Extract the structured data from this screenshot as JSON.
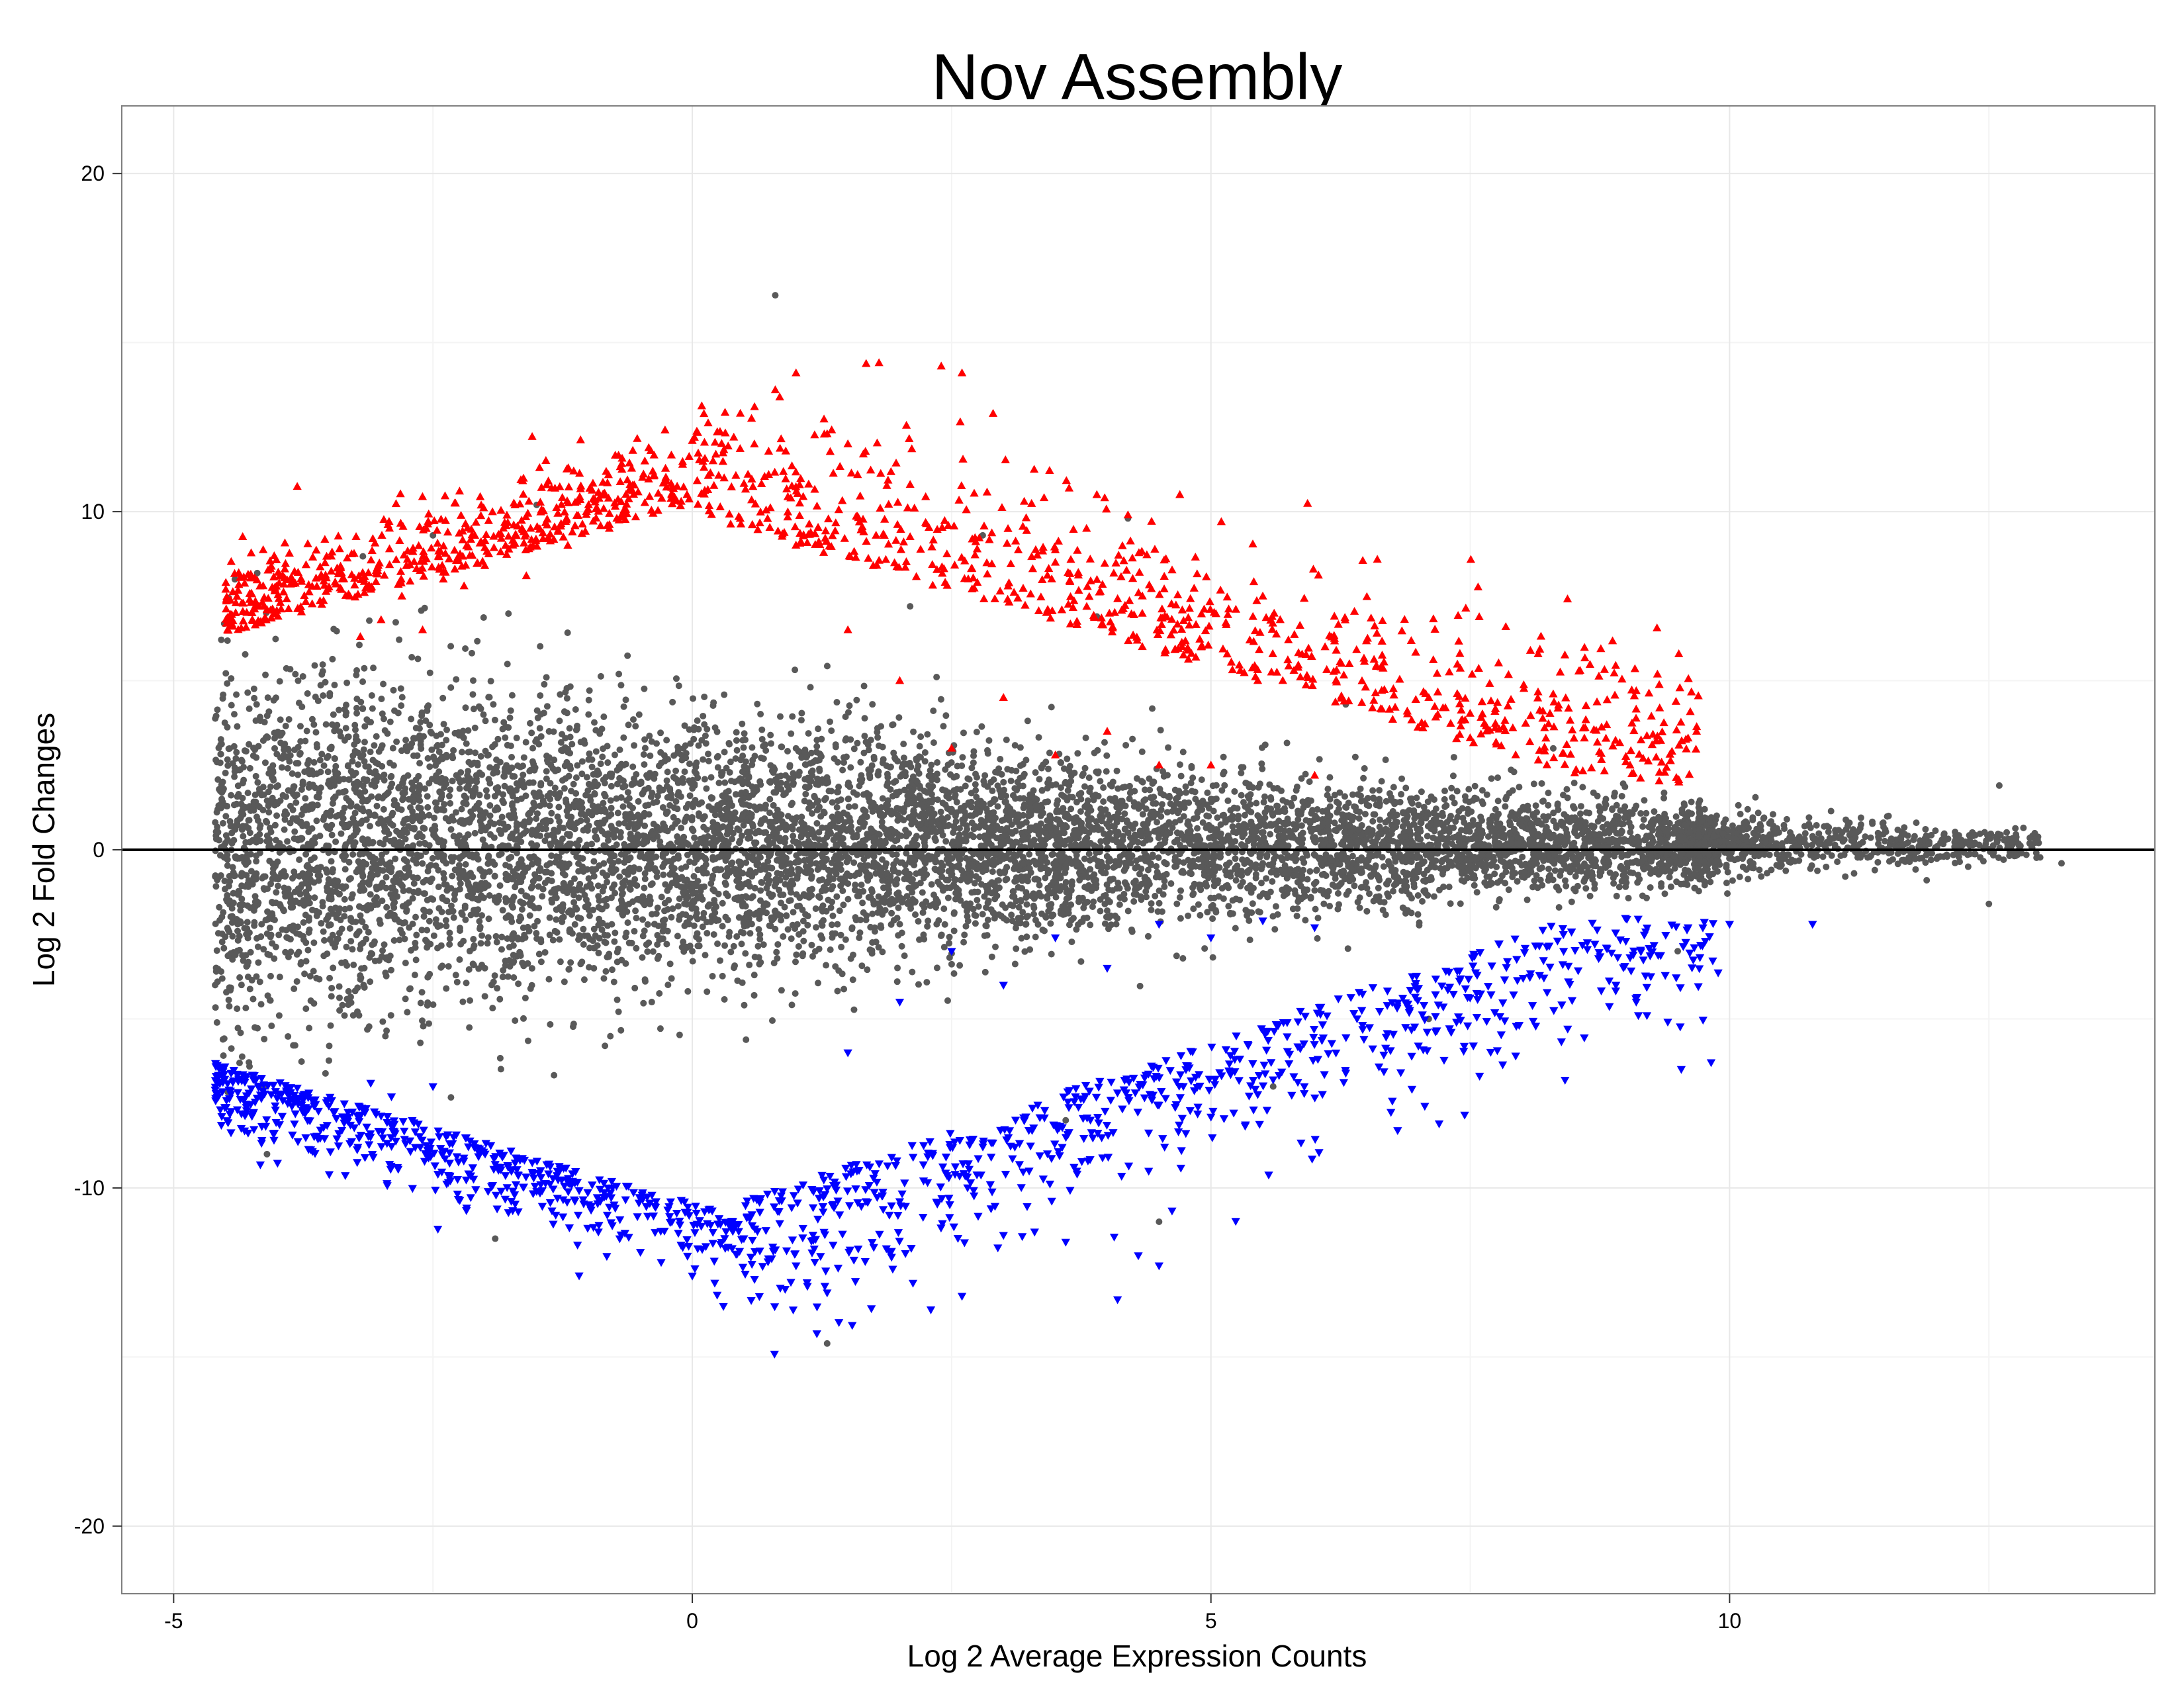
{
  "chart_data": {
    "type": "scatter",
    "title": "Nov Assembly",
    "xlabel": "Log 2 Average Expression Counts",
    "ylabel": "Log 2 Fold Changes",
    "xlim": [
      -5.5,
      14.1
    ],
    "ylim": [
      -22,
      22
    ],
    "x_ticks": [
      -5,
      0,
      5,
      10
    ],
    "y_ticks": [
      -20,
      -10,
      0,
      10,
      20
    ],
    "x_tick_labels": [
      "-5",
      "0",
      "5",
      "10"
    ],
    "y_tick_labels": [
      "-20",
      "-10",
      "0",
      "10",
      "20"
    ],
    "grid": true,
    "reference_line": {
      "y": 0,
      "color": "#000000"
    },
    "series": [
      {
        "role": "not-significant",
        "marker": "circle",
        "color": "#595959",
        "points": [
          [
            0.8,
            16.4
          ],
          [
            1.3,
            -14.6
          ],
          [
            -1.9,
            -11.5
          ],
          [
            -4.1,
            -9.0
          ],
          [
            13.2,
            -0.4
          ],
          [
            12.6,
            1.9
          ],
          [
            12.5,
            -1.6
          ],
          [
            12.3,
            -0.5
          ],
          [
            11.9,
            -0.9
          ],
          [
            11.8,
            0.8
          ],
          [
            11.4,
            -0.6
          ],
          [
            11.5,
            0.6
          ],
          [
            10.8,
            0.4
          ],
          [
            10.6,
            -0.3
          ],
          [
            10.3,
            0.7
          ],
          [
            10.2,
            -0.5
          ],
          [
            -4.5,
            0.2
          ],
          [
            -4.3,
            -2.5
          ],
          [
            -4.4,
            2.7
          ],
          [
            -4.6,
            -4.0
          ],
          [
            -4.2,
            4.3
          ],
          [
            -3.8,
            5.0
          ],
          [
            -3.5,
            -5.8
          ],
          [
            -2.5,
            9.3
          ],
          [
            -1.5,
            10.2
          ],
          [
            2.1,
            7.2
          ],
          [
            2.8,
            9.3
          ],
          [
            3.6,
            -8.0
          ],
          [
            4.2,
            9.8
          ],
          [
            3.9,
            6.9
          ],
          [
            4.5,
            -11.0
          ],
          [
            5.6,
            -7.0
          ],
          [
            6.3,
            4.3
          ],
          [
            7.1,
            -5.0
          ],
          [
            8.3,
            3.0
          ],
          [
            9.5,
            -3.0
          ],
          [
            -1.2,
            1.0
          ],
          [
            -0.5,
            -1.5
          ],
          [
            0.5,
            2.0
          ],
          [
            1.5,
            -1.0
          ],
          [
            2.5,
            1.2
          ],
          [
            3.5,
            -0.8
          ],
          [
            4.5,
            0.6
          ],
          [
            5.5,
            -0.4
          ],
          [
            6.5,
            0.3
          ],
          [
            7.5,
            -0.3
          ],
          [
            8.5,
            0.2
          ],
          [
            9.3,
            -0.2
          ],
          [
            -3.0,
            3.0
          ],
          [
            -2.0,
            -3.5
          ],
          [
            -1.0,
            4.0
          ],
          [
            0.0,
            -3.0
          ],
          [
            1.0,
            3.0
          ],
          [
            2.0,
            -2.2
          ],
          [
            3.0,
            2.0
          ],
          [
            4.0,
            -1.8
          ],
          [
            5.0,
            1.5
          ],
          [
            6.0,
            -1.2
          ],
          [
            7.0,
            1.0
          ],
          [
            8.0,
            -0.8
          ]
        ]
      },
      {
        "role": "up-regulated",
        "marker": "triangle-up",
        "color": "#ff0000",
        "points": [
          [
            -4.4,
            7.3
          ],
          [
            -4.1,
            7.1
          ],
          [
            -3.8,
            8.2
          ],
          [
            -3.4,
            8.9
          ],
          [
            -3.2,
            6.3
          ],
          [
            -3.0,
            6.8
          ],
          [
            -2.8,
            7.5
          ],
          [
            -2.6,
            6.5
          ],
          [
            -2.4,
            8.0
          ],
          [
            -2.2,
            7.8
          ],
          [
            -2.0,
            8.4
          ],
          [
            -1.8,
            9.0
          ],
          [
            -1.6,
            8.1
          ],
          [
            -1.4,
            9.6
          ],
          [
            -1.2,
            9.0
          ],
          [
            -1.0,
            10.2
          ],
          [
            -0.8,
            9.5
          ],
          [
            -0.6,
            10.8
          ],
          [
            -0.4,
            11.8
          ],
          [
            -0.2,
            10.5
          ],
          [
            0.0,
            12.1
          ],
          [
            0.2,
            11.5
          ],
          [
            0.4,
            12.2
          ],
          [
            0.6,
            13.1
          ],
          [
            0.8,
            13.6
          ],
          [
            1.0,
            14.1
          ],
          [
            1.3,
            12.3
          ],
          [
            1.5,
            12.0
          ],
          [
            1.8,
            14.4
          ],
          [
            2.1,
            10.8
          ],
          [
            2.4,
            14.3
          ],
          [
            2.6,
            14.1
          ],
          [
            2.9,
            12.9
          ],
          [
            3.2,
            10.3
          ],
          [
            3.5,
            8.5
          ],
          [
            3.9,
            10.5
          ],
          [
            4.2,
            9.9
          ],
          [
            4.7,
            10.5
          ],
          [
            5.1,
            9.7
          ],
          [
            5.5,
            7.5
          ],
          [
            5.8,
            5.3
          ],
          [
            6.1,
            6.0
          ],
          [
            6.6,
            6.4
          ],
          [
            7.1,
            4.5
          ],
          [
            7.4,
            5.8
          ],
          [
            7.7,
            4.4
          ],
          [
            8.2,
            4.1
          ],
          [
            8.6,
            3.3
          ],
          [
            9.1,
            4.7
          ],
          [
            9.0,
            2.6
          ],
          [
            9.6,
            3.3
          ],
          [
            1.5,
            6.5
          ],
          [
            2.0,
            5.0
          ],
          [
            2.5,
            3.0
          ],
          [
            3.0,
            4.5
          ],
          [
            3.5,
            2.8
          ],
          [
            4.0,
            3.5
          ],
          [
            4.5,
            2.5
          ],
          [
            5.0,
            2.5
          ],
          [
            6.0,
            2.2
          ]
        ]
      },
      {
        "role": "down-regulated",
        "marker": "triangle-down",
        "color": "#0000ff",
        "points": [
          [
            -4.6,
            -7.1
          ],
          [
            -4.3,
            -7.8
          ],
          [
            -3.9,
            -7.5
          ],
          [
            -3.5,
            -9.6
          ],
          [
            -3.1,
            -6.9
          ],
          [
            -2.9,
            -7.3
          ],
          [
            -2.7,
            -8.0
          ],
          [
            -2.5,
            -7.0
          ],
          [
            -2.3,
            -8.5
          ],
          [
            -2.1,
            -8.8
          ],
          [
            -1.9,
            -9.3
          ],
          [
            -1.7,
            -9.9
          ],
          [
            -1.5,
            -10.1
          ],
          [
            -1.3,
            -10.3
          ],
          [
            -1.1,
            -10.8
          ],
          [
            -0.9,
            -11.1
          ],
          [
            -0.7,
            -11.5
          ],
          [
            -0.5,
            -11.9
          ],
          [
            -0.3,
            -12.2
          ],
          [
            0.0,
            -12.6
          ],
          [
            0.3,
            -13.5
          ],
          [
            0.6,
            -12.7
          ],
          [
            1.0,
            -12.3
          ],
          [
            1.3,
            -13.1
          ],
          [
            1.6,
            -11.8
          ],
          [
            1.9,
            -10.8
          ],
          [
            2.3,
            -13.6
          ],
          [
            2.6,
            -13.2
          ],
          [
            3.0,
            -11.4
          ],
          [
            3.3,
            -11.3
          ],
          [
            3.6,
            -11.6
          ],
          [
            4.1,
            -13.3
          ],
          [
            4.3,
            -12.0
          ],
          [
            4.5,
            -12.3
          ],
          [
            4.4,
            -9.5
          ],
          [
            5.0,
            -7.9
          ],
          [
            5.6,
            -6.8
          ],
          [
            5.9,
            -7.0
          ],
          [
            6.3,
            -6.6
          ],
          [
            6.8,
            -8.3
          ],
          [
            7.2,
            -8.1
          ],
          [
            7.0,
            -5.8
          ],
          [
            6.7,
            -4.6
          ],
          [
            8.1,
            -4.6
          ],
          [
            8.4,
            -3.0
          ],
          [
            9.1,
            -4.5
          ],
          [
            9.0,
            -2.7
          ],
          [
            9.6,
            -2.3
          ],
          [
            10.0,
            -2.2
          ],
          [
            10.8,
            -2.2
          ],
          [
            1.5,
            -6.0
          ],
          [
            2.0,
            -4.5
          ],
          [
            2.5,
            -3.0
          ],
          [
            3.0,
            -4.0
          ],
          [
            3.5,
            -2.6
          ],
          [
            4.0,
            -3.5
          ],
          [
            4.5,
            -2.2
          ],
          [
            5.0,
            -2.6
          ],
          [
            5.5,
            -2.1
          ],
          [
            6.0,
            -2.3
          ]
        ]
      }
    ]
  }
}
